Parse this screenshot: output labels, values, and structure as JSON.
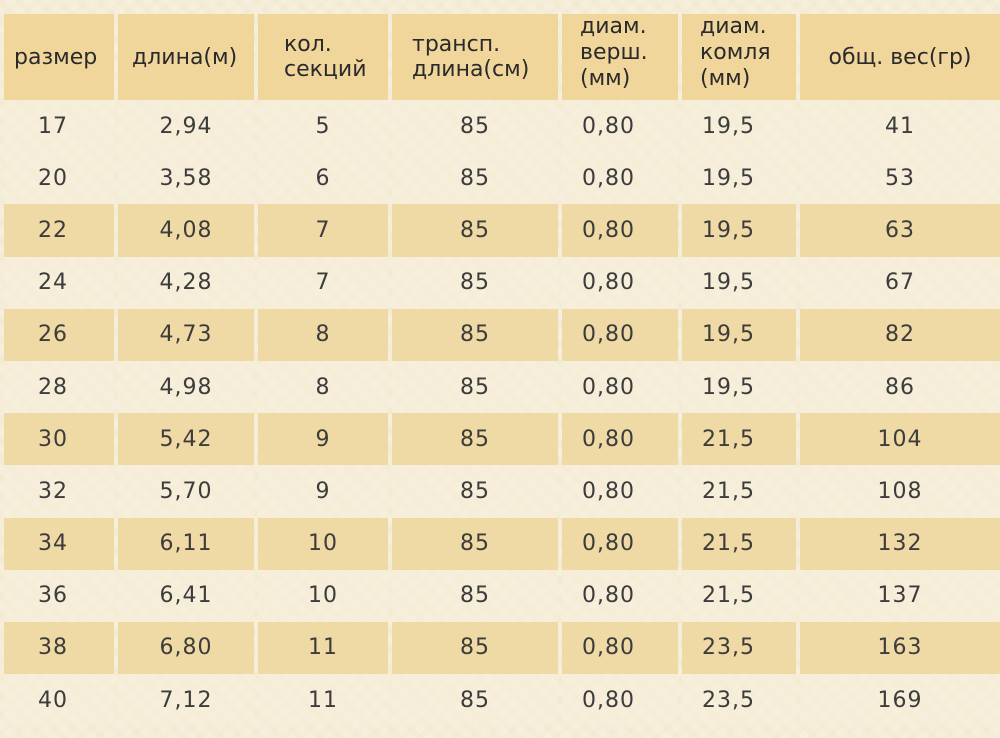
{
  "table": {
    "headers": [
      "размер",
      "длина(м)",
      "кол.\nсекций",
      "трансп.\nдлина(см)",
      "диам.\nверш.\n(мм)",
      "диам.\nкомля\n(мм)",
      "общ. вес(гр)"
    ],
    "rows": [
      [
        "17",
        "2,94",
        "5",
        "85",
        "0,80",
        "19,5",
        "41"
      ],
      [
        "20",
        "3,58",
        "6",
        "85",
        "0,80",
        "19,5",
        "53"
      ],
      [
        "22",
        "4,08",
        "7",
        "85",
        "0,80",
        "19,5",
        "63"
      ],
      [
        "24",
        "4,28",
        "7",
        "85",
        "0,80",
        "19,5",
        "67"
      ],
      [
        "26",
        "4,73",
        "8",
        "85",
        "0,80",
        "19,5",
        "82"
      ],
      [
        "28",
        "4,98",
        "8",
        "85",
        "0,80",
        "19,5",
        "86"
      ],
      [
        "30",
        "5,42",
        "9",
        "85",
        "0,80",
        "21,5",
        "104"
      ],
      [
        "32",
        "5,70",
        "9",
        "85",
        "0,80",
        "21,5",
        "108"
      ],
      [
        "34",
        "6,11",
        "10",
        "85",
        "0,80",
        "21,5",
        "132"
      ],
      [
        "36",
        "6,41",
        "10",
        "85",
        "0,80",
        "21,5",
        "137"
      ],
      [
        "38",
        "6,80",
        "11",
        "85",
        "0,80",
        "23,5",
        "163"
      ],
      [
        "40",
        "7,12",
        "11",
        "85",
        "0,80",
        "23,5",
        "169"
      ]
    ]
  },
  "colors": {
    "header_bg": "#f1d69c",
    "stripe_bg": "#efd9a4",
    "page_bg": "#f6efdb"
  }
}
